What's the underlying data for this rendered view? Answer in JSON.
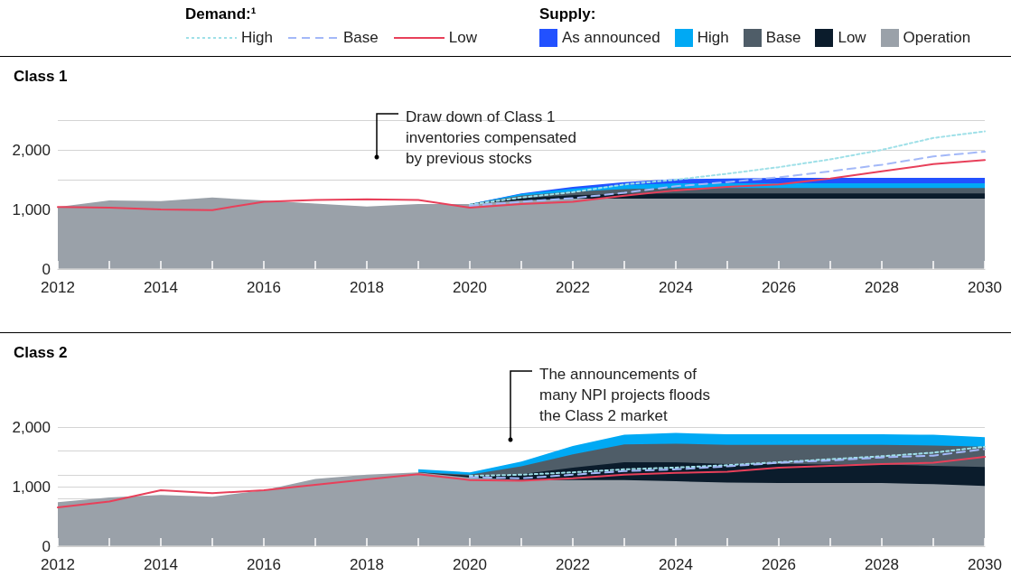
{
  "chart_data": [
    {
      "type": "area",
      "title": "Class 1",
      "stacked": true,
      "legend": "top",
      "grid": "y",
      "annotations": [
        "Demand:¹",
        "Supply:",
        "Draw down of Class 1\ninventories compensated\nby previous stocks"
      ],
      "x": [
        2012,
        2013,
        2014,
        2015,
        2016,
        2017,
        2018,
        2019,
        2020,
        2021,
        2022,
        2023,
        2024,
        2025,
        2026,
        2027,
        2028,
        2029,
        2030
      ],
      "xlim": [
        2012,
        2030
      ],
      "xticks": [
        2012,
        {
          "value": 2013,
          "label": null
        },
        2014,
        {
          "value": 2015,
          "label": null
        },
        2016,
        {
          "value": 2017,
          "label": null
        },
        2018,
        {
          "value": 2019,
          "label": null
        },
        2020,
        {
          "value": 2021,
          "label": null
        },
        2022,
        {
          "value": 2023,
          "label": null
        },
        2024,
        {
          "value": 2025,
          "label": null
        },
        2026,
        {
          "value": 2027,
          "label": null
        },
        2028,
        {
          "value": 2029,
          "label": null
        },
        2030
      ],
      "ylim": [
        0,
        2500
      ],
      "yticks": [
        0,
        {
          "value": 1000,
          "label": "1,000"
        },
        {
          "value": 1500,
          "label": null
        },
        {
          "value": 2000,
          "label": "2,000"
        },
        {
          "value": 2500,
          "label": null
        }
      ],
      "series": [
        {
          "name": "Operation",
          "color": "#9aa1a9",
          "values": [
            1040,
            1150,
            1140,
            1200,
            1150,
            1100,
            1050,
            1090,
            1090,
            1150,
            1180,
            1180,
            1180,
            1180,
            1180,
            1180,
            1180,
            1180,
            1180
          ]
        },
        {
          "name": "Low",
          "color": "#0b1c2c",
          "values": [
            null,
            null,
            null,
            null,
            null,
            null,
            null,
            null,
            0,
            40,
            60,
            80,
            90,
            90,
            90,
            90,
            90,
            90,
            90
          ]
        },
        {
          "name": "Base",
          "color": "#4f5d68",
          "values": [
            null,
            null,
            null,
            null,
            null,
            null,
            null,
            null,
            0,
            40,
            60,
            80,
            90,
            90,
            90,
            90,
            90,
            90,
            90
          ]
        },
        {
          "name": "High",
          "color": "#00a9f4",
          "values": [
            null,
            null,
            null,
            null,
            null,
            null,
            null,
            null,
            0,
            30,
            50,
            70,
            80,
            80,
            80,
            80,
            80,
            80,
            80
          ]
        },
        {
          "name": "As announced",
          "color": "#2251ff",
          "values": [
            null,
            null,
            null,
            null,
            null,
            null,
            null,
            null,
            0,
            10,
            30,
            50,
            70,
            80,
            90,
            90,
            90,
            90,
            90
          ]
        },
        {
          "name": "High",
          "type": "line",
          "line_style": "dotted",
          "color": "#9fe0e8",
          "values": [
            null,
            null,
            null,
            null,
            null,
            null,
            null,
            null,
            1080,
            1200,
            1290,
            1420,
            1500,
            1600,
            1710,
            1840,
            2000,
            2200,
            2310
          ]
        },
        {
          "name": "Base",
          "type": "line",
          "line_style": "dashed",
          "color": "#a3b8f8",
          "values": [
            null,
            null,
            null,
            null,
            null,
            null,
            null,
            null,
            1060,
            1130,
            1190,
            1280,
            1390,
            1460,
            1540,
            1640,
            1750,
            1890,
            1970
          ]
        },
        {
          "name": "Low",
          "type": "line",
          "line_style": "solid",
          "color": "#e8405a",
          "values": [
            1040,
            1030,
            1000,
            990,
            1130,
            1160,
            1170,
            1160,
            1030,
            1090,
            1130,
            1230,
            1320,
            1380,
            1420,
            1520,
            1640,
            1760,
            1830
          ]
        }
      ]
    },
    {
      "type": "area",
      "title": "Class 2",
      "stacked": true,
      "legend": false,
      "grid": "y",
      "annotations": [
        "The announcements of\nmany NPI projects floods\nthe Class 2 market"
      ],
      "x": [
        2012,
        2013,
        2014,
        2015,
        2016,
        2017,
        2018,
        2019,
        2020,
        2021,
        2022,
        2023,
        2024,
        2025,
        2026,
        2027,
        2028,
        2029,
        2030
      ],
      "xlim": [
        2012,
        2030
      ],
      "xticks": [
        2012,
        {
          "value": 2013,
          "label": null
        },
        2014,
        {
          "value": 2015,
          "label": null
        },
        2016,
        {
          "value": 2017,
          "label": null
        },
        2018,
        {
          "value": 2019,
          "label": null
        },
        2020,
        {
          "value": 2021,
          "label": null
        },
        2022,
        {
          "value": 2023,
          "label": null
        },
        2024,
        {
          "value": 2025,
          "label": null
        },
        2026,
        {
          "value": 2027,
          "label": null
        },
        2028,
        {
          "value": 2029,
          "label": null
        },
        2030
      ],
      "ylim": [
        0,
        2000
      ],
      "yticks": [
        0,
        {
          "value": 800,
          "label": null
        },
        {
          "value": 1000,
          "label": "1,000"
        },
        {
          "value": 1200,
          "label": null
        },
        {
          "value": 1600,
          "label": null
        },
        {
          "value": 2000,
          "label": "2,000"
        }
      ],
      "series": [
        {
          "color": "#9aa1a9",
          "values": [
            740,
            820,
            860,
            830,
            940,
            1130,
            1200,
            1240,
            1150,
            1110,
            1110,
            1110,
            1090,
            1070,
            1060,
            1060,
            1060,
            1040,
            1010
          ]
        },
        {
          "color": "#0b1c2c",
          "values": [
            null,
            null,
            null,
            null,
            null,
            null,
            null,
            0,
            30,
            100,
            210,
            300,
            320,
            310,
            320,
            310,
            310,
            310,
            320
          ]
        },
        {
          "color": "#4f5d68",
          "values": [
            null,
            null,
            null,
            null,
            null,
            null,
            null,
            0,
            20,
            130,
            220,
            300,
            310,
            320,
            320,
            330,
            330,
            340,
            340
          ]
        },
        {
          "color": "#00a9f4",
          "values": [
            null,
            null,
            null,
            null,
            null,
            null,
            null,
            50,
            40,
            80,
            140,
            160,
            180,
            180,
            180,
            180,
            180,
            180,
            160
          ]
        },
        {
          "type": "line",
          "line_style": "dotted",
          "color": "#9fe0e8",
          "values": [
            null,
            null,
            null,
            null,
            null,
            null,
            null,
            null,
            1180,
            1200,
            1240,
            1290,
            1320,
            1360,
            1410,
            1460,
            1510,
            1570,
            1670
          ]
        },
        {
          "type": "line",
          "line_style": "dashed",
          "color": "#a3b8f8",
          "values": [
            null,
            null,
            null,
            null,
            null,
            null,
            null,
            null,
            1160,
            1140,
            1200,
            1260,
            1290,
            1340,
            1400,
            1440,
            1490,
            1520,
            1630
          ]
        },
        {
          "type": "line",
          "line_style": "solid",
          "color": "#e8405a",
          "values": [
            650,
            750,
            940,
            890,
            940,
            1030,
            1120,
            1210,
            1110,
            1100,
            1140,
            1200,
            1230,
            1250,
            1320,
            1350,
            1380,
            1400,
            1500
          ]
        }
      ]
    }
  ]
}
